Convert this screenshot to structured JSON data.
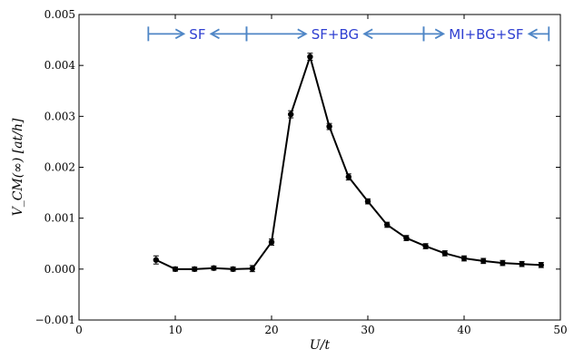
{
  "chart_data": {
    "type": "line",
    "title": "",
    "xlabel": "U/t",
    "ylabel": "V_CM(∞) [at/h]",
    "xlim": [
      0,
      50
    ],
    "ylim": [
      -0.001,
      0.005
    ],
    "xticks": [
      0,
      10,
      20,
      30,
      40,
      50
    ],
    "xtick_labels": [
      "0",
      "10",
      "20",
      "30",
      "40",
      "50"
    ],
    "yticks": [
      -0.001,
      0.0,
      0.001,
      0.002,
      0.003,
      0.004,
      0.005
    ],
    "ytick_labels": [
      "−0.001",
      "0.000",
      "0.001",
      "0.002",
      "0.003",
      "0.004",
      "0.005"
    ],
    "grid": false,
    "series": [
      {
        "color": "#000000",
        "x": [
          8,
          10,
          12,
          14,
          16,
          18,
          20,
          22,
          24,
          26,
          28,
          30,
          32,
          34,
          36,
          38,
          40,
          42,
          44,
          46,
          48
        ],
        "y": [
          0.00018,
          0.0,
          0.0,
          2e-05,
          0.0,
          1e-05,
          0.00053,
          0.00304,
          0.00417,
          0.0028,
          0.00181,
          0.00133,
          0.00087,
          0.00061,
          0.00045,
          0.00031,
          0.00021,
          0.00016,
          0.00012,
          0.0001,
          8e-05
        ],
        "err": [
          8e-05,
          4e-05,
          4e-05,
          4e-05,
          4e-05,
          6e-05,
          6e-05,
          7e-05,
          7e-05,
          6e-05,
          6e-05,
          5e-05,
          5e-05,
          5e-05,
          5e-05,
          5e-05,
          5e-05,
          5e-05,
          5e-05,
          5e-05,
          5e-05
        ]
      }
    ],
    "regions": [
      {
        "label": "SF",
        "x_start": 7.2,
        "x_end": 17.4
      },
      {
        "label": "SF+BG",
        "x_start": 17.4,
        "x_end": 35.8
      },
      {
        "label": "MI+BG+SF",
        "x_start": 35.8,
        "x_end": 48.8
      }
    ],
    "region_label_y": 0.00462,
    "region_color": "#4f86c6",
    "region_text_color": "#2f3fd1"
  }
}
